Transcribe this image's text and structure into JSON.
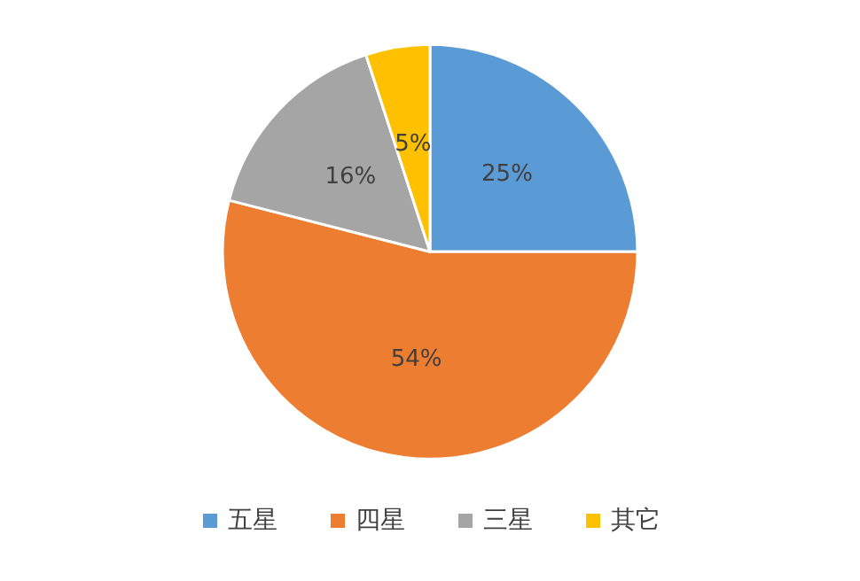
{
  "chart_data": {
    "type": "pie",
    "categories": [
      "五星",
      "四星",
      "三星",
      "其它"
    ],
    "values": [
      25,
      54,
      16,
      5
    ],
    "colors": [
      "#5b9bd5",
      "#ed7d31",
      "#a5a5a5",
      "#ffc000"
    ],
    "value_labels": [
      "25%",
      "54%",
      "16%",
      "5%"
    ],
    "legend": "bottom"
  }
}
